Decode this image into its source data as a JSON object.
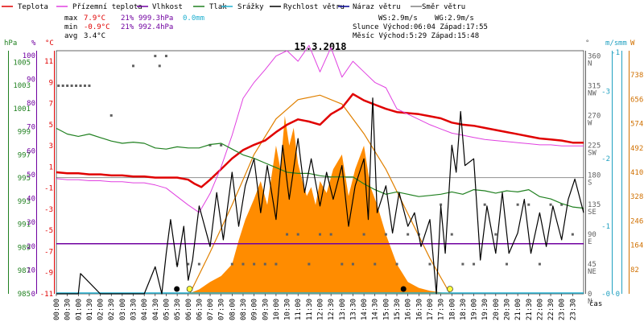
{
  "legend": {
    "items": [
      {
        "label": "Teplota",
        "color": "#e00000"
      },
      {
        "label": "Přízemní teplota",
        "color": "#e040e0"
      },
      {
        "label": "Vlhkost",
        "color": "#7000a0"
      },
      {
        "label": "Tlak",
        "color": "#208020"
      },
      {
        "label": "Srážky",
        "color": "#20b0d0"
      },
      {
        "label": "Rychlost větru",
        "color": "#000000"
      },
      {
        "label": "Náraz větru",
        "color": "#000090"
      },
      {
        "label": "Směr větru",
        "color": "#808080"
      }
    ]
  },
  "stats": {
    "max_label": "max",
    "max_temp": "7.9°C",
    "max_hum": "21%",
    "max_press": "999.3hPa",
    "max_rain": "0.0mm",
    "min_label": "min",
    "min_temp": "-0.9°C",
    "min_hum": "21%",
    "min_press": "992.4hPa",
    "avg_label": "avg",
    "avg_temp": "3.4°C",
    "ws": "WS:2.9m/s",
    "wg": "WG:2.9m/s",
    "sun": "Slunce Východ:06:04  Západ:17:55",
    "moon": "Měsíc  Východ:5:29   Západ:15:48"
  },
  "title": "15.3.2018",
  "axes": {
    "hpa_unit": "hPa",
    "pct_unit": "%",
    "c_unit": "°C",
    "deg_unit": "°",
    "ms_unit": "m/s",
    "mm_unit": "mm",
    "w_unit": "W",
    "x_unit": "čas",
    "hpa_ticks": [
      "985",
      "987",
      "989",
      "991",
      "993",
      "995",
      "997",
      "999",
      "1001",
      "1003",
      "1005"
    ],
    "pct_ticks": [
      "0",
      "10",
      "20",
      "30",
      "40",
      "50",
      "60",
      "70",
      "80",
      "90",
      "100"
    ],
    "temp_ticks": [
      "-11",
      "-9",
      "-7",
      "-5",
      "-3",
      "-1",
      "1",
      "3",
      "5",
      "7",
      "9",
      "11"
    ],
    "deg_ticks": [
      "0 N",
      "45 NE",
      "90 E",
      "135 SE",
      "180 S",
      "225 SW",
      "270 W",
      "315 NW",
      "360 N"
    ],
    "ms_ticks": [
      "-0",
      "-1",
      "-2",
      "-3"
    ],
    "mm_ticks": [
      "-0",
      "-1"
    ],
    "w_ticks": [
      "82",
      "164",
      "246",
      "328",
      "410",
      "492",
      "574",
      "656",
      "738"
    ],
    "x_ticks": [
      "00:00",
      "00:30",
      "01:00",
      "01:30",
      "02:00",
      "02:30",
      "03:00",
      "03:30",
      "04:00",
      "04:30",
      "05:00",
      "05:30",
      "06:00",
      "06:30",
      "07:00",
      "07:30",
      "08:00",
      "08:30",
      "09:00",
      "09:30",
      "10:00",
      "10:30",
      "11:00",
      "11:30",
      "12:00",
      "12:30",
      "13:00",
      "13:30",
      "14:00",
      "14:30",
      "15:00",
      "15:30",
      "16:00",
      "16:30",
      "17:00",
      "17:30",
      "18:00",
      "18:30",
      "19:00",
      "19:30",
      "20:00",
      "20:30",
      "21:00",
      "21:30",
      "22:00",
      "22:30",
      "23:00",
      "23:30"
    ]
  },
  "chart_data": {
    "type": "line",
    "title": "15.3.2018",
    "x_unit": "hours",
    "xlim": [
      0,
      24
    ],
    "series": [
      {
        "name": "Teplota",
        "axis": "temp_c",
        "color": "#e00000",
        "x": [
          0,
          0.5,
          1,
          1.5,
          2,
          2.5,
          3,
          3.5,
          4,
          4.5,
          5,
          5.5,
          6,
          6.3,
          6.6,
          7,
          7.5,
          8,
          8.5,
          9,
          9.5,
          10,
          10.5,
          11,
          11.5,
          12,
          12.5,
          13,
          13.5,
          14,
          14.5,
          15,
          15.5,
          16,
          16.5,
          17,
          17.5,
          18,
          18.5,
          19,
          19.5,
          20,
          20.5,
          21,
          21.5,
          22,
          22.5,
          23,
          23.5,
          24
        ],
        "y": [
          0.5,
          0.4,
          0.4,
          0.3,
          0.3,
          0.2,
          0.2,
          0.1,
          0.1,
          0.0,
          0.0,
          0.0,
          -0.2,
          -0.6,
          -0.9,
          -0.2,
          0.8,
          1.8,
          2.6,
          3.1,
          3.5,
          4.3,
          5.0,
          5.5,
          5.3,
          5.0,
          6.0,
          6.6,
          7.9,
          7.3,
          6.9,
          6.5,
          6.2,
          6.1,
          6.0,
          5.8,
          5.6,
          5.2,
          5.0,
          4.9,
          4.7,
          4.5,
          4.3,
          4.1,
          3.9,
          3.7,
          3.6,
          3.5,
          3.3,
          3.3
        ]
      },
      {
        "name": "Přízemní teplota",
        "axis": "temp_c",
        "color": "#e040e0",
        "x": [
          0,
          0.5,
          1,
          1.5,
          2,
          2.5,
          3,
          3.5,
          4,
          4.5,
          5,
          5.5,
          6,
          6.5,
          7,
          7.5,
          8,
          8.5,
          9,
          9.5,
          10,
          10.5,
          11,
          11.5,
          12,
          12.5,
          13,
          13.5,
          14,
          14.5,
          15,
          15.5,
          16,
          16.5,
          17,
          17.5,
          18,
          18.5,
          19,
          19.5,
          20,
          20.5,
          21,
          21.5,
          22,
          22.5,
          23,
          23.5,
          24
        ],
        "y": [
          -0.1,
          -0.2,
          -0.2,
          -0.3,
          -0.3,
          -0.4,
          -0.4,
          -0.5,
          -0.5,
          -0.7,
          -1.0,
          -1.8,
          -2.6,
          -3.3,
          -1.5,
          1.0,
          4.0,
          7.5,
          9.0,
          10.2,
          11.5,
          12.0,
          11.0,
          12.5,
          10.0,
          12.3,
          9.5,
          11.0,
          10.0,
          9.0,
          8.5,
          6.5,
          6.0,
          5.5,
          5.0,
          4.6,
          4.2,
          4.0,
          3.8,
          3.6,
          3.5,
          3.4,
          3.3,
          3.2,
          3.1,
          3.1,
          3.0,
          3.0,
          3.0
        ]
      },
      {
        "name": "Vlhkost",
        "axis": "percent",
        "color": "#7000a0",
        "x": [
          0,
          24
        ],
        "y": [
          21,
          21
        ]
      },
      {
        "name": "Tlak",
        "axis": "hpa",
        "color": "#208020",
        "x": [
          0,
          0.5,
          1,
          1.5,
          2,
          2.5,
          3,
          3.5,
          4,
          4.5,
          5,
          5.5,
          6,
          6.5,
          7,
          7.5,
          8,
          8.5,
          9,
          9.5,
          10,
          10.5,
          11,
          11.5,
          12,
          12.5,
          13,
          13.5,
          14,
          14.5,
          15,
          15.5,
          16,
          16.5,
          17,
          17.5,
          18,
          18.5,
          19,
          19.5,
          20,
          20.5,
          21,
          21.5,
          22,
          22.5,
          23,
          23.5,
          24
        ],
        "y": [
          999.3,
          998.8,
          998.6,
          998.8,
          998.5,
          998.2,
          998.0,
          998.1,
          998.0,
          997.6,
          997.5,
          997.7,
          997.6,
          997.6,
          997.9,
          998.0,
          997.5,
          997.0,
          996.7,
          996.3,
          995.9,
          995.5,
          995.4,
          995.4,
          995.2,
          995.1,
          995.1,
          995.1,
          994.5,
          994.0,
          993.6,
          993.8,
          993.6,
          993.4,
          993.5,
          993.6,
          993.8,
          993.6,
          994.0,
          993.9,
          993.7,
          993.9,
          993.8,
          994.0,
          993.4,
          993.2,
          992.8,
          992.5,
          992.4
        ]
      },
      {
        "name": "Srážky",
        "axis": "mm",
        "color": "#20b0d0",
        "x": [
          0,
          24
        ],
        "y": [
          0,
          0
        ]
      },
      {
        "name": "Rychlost větru",
        "axis": "ms",
        "color": "#000000",
        "x": [
          0,
          1,
          1.1,
          2,
          3,
          4,
          4.5,
          4.8,
          5.0,
          5.2,
          5.5,
          5.8,
          6.0,
          6.2,
          6.5,
          7,
          7.3,
          7.6,
          8,
          8.3,
          8.6,
          9,
          9.3,
          9.6,
          10,
          10.3,
          10.6,
          11,
          11.3,
          11.6,
          12,
          12.3,
          12.6,
          13,
          13.3,
          13.6,
          14,
          14.2,
          14.4,
          14.6,
          15,
          15.3,
          15.6,
          16,
          16.3,
          16.6,
          17,
          17.3,
          17.5,
          17.7,
          18,
          18.2,
          18.4,
          18.6,
          19,
          19.3,
          19.6,
          20,
          20.3,
          20.6,
          21,
          21.3,
          21.6,
          22,
          22.3,
          22.6,
          23,
          23.3,
          23.6,
          24
        ],
        "y": [
          0,
          0,
          0.3,
          0,
          0,
          0,
          0.4,
          0,
          0.6,
          1.1,
          0.4,
          1.0,
          0.2,
          0.5,
          1.3,
          0.7,
          1.5,
          0.8,
          1.8,
          1.0,
          1.6,
          2.0,
          1.2,
          1.9,
          1.1,
          2.2,
          1.4,
          2.3,
          1.5,
          2.0,
          1.3,
          1.8,
          1.4,
          1.9,
          1.0,
          1.6,
          2.0,
          1.1,
          2.9,
          1.2,
          1.6,
          0.9,
          1.5,
          1.0,
          1.2,
          0.7,
          1.1,
          0,
          1.3,
          0.6,
          2.2,
          1.8,
          2.7,
          1.9,
          2.0,
          0.5,
          1.3,
          0.6,
          1.5,
          0.6,
          0.9,
          1.4,
          0.6,
          1.2,
          0.7,
          1.3,
          0.8,
          1.4,
          1.7,
          1.2
        ]
      }
    ],
    "wind_direction_deg": {
      "x": [
        0.1,
        0.3,
        0.5,
        0.7,
        0.9,
        1.1,
        1.3,
        1.5,
        2.5,
        3.5,
        4.5,
        4.7,
        5.0,
        5.5,
        6.0,
        6.5,
        7.0,
        7.5,
        8.0,
        8.5,
        9.0,
        9.5,
        10.0,
        10.5,
        11.0,
        11.5,
        12.0,
        12.5,
        13.0,
        13.5,
        14.0,
        14.5,
        15.0,
        15.5,
        16.0,
        16.5,
        17.0,
        17.5,
        18.0,
        18.5,
        19.0,
        19.5,
        20.0,
        20.5,
        21.0,
        21.5,
        22.0,
        22.5,
        23.0,
        23.5
      ],
      "y": [
        315,
        315,
        315,
        315,
        315,
        315,
        315,
        315,
        270,
        345,
        360,
        345,
        360,
        45,
        45,
        45,
        225,
        225,
        45,
        45,
        45,
        45,
        45,
        90,
        90,
        45,
        90,
        90,
        45,
        45,
        90,
        45,
        90,
        45,
        90,
        90,
        45,
        135,
        90,
        45,
        45,
        135,
        90,
        45,
        135,
        135,
        45,
        135,
        135,
        90
      ]
    },
    "solar_w": {
      "x": [
        6.0,
        6.5,
        7,
        7.5,
        8,
        8.3,
        8.6,
        9,
        9.3,
        9.6,
        10,
        10.2,
        10.4,
        10.6,
        10.8,
        11,
        11.2,
        11.4,
        11.6,
        11.8,
        12,
        12.3,
        12.6,
        13,
        13.3,
        13.6,
        14,
        14.3,
        14.6,
        15,
        15.5,
        16,
        16.5,
        17,
        17.5,
        18
      ],
      "y": [
        0,
        15,
        40,
        60,
        100,
        180,
        250,
        320,
        380,
        300,
        500,
        420,
        600,
        500,
        560,
        440,
        380,
        330,
        360,
        300,
        380,
        340,
        420,
        470,
        330,
        420,
        500,
        360,
        300,
        200,
        100,
        40,
        20,
        10,
        5,
        0
      ]
    },
    "solar_theoretical_w": {
      "x": [
        6.07,
        7,
        8,
        9,
        10,
        11,
        12,
        13,
        14,
        15,
        16,
        17,
        17.92
      ],
      "y": [
        0,
        140,
        300,
        470,
        590,
        655,
        670,
        640,
        540,
        420,
        270,
        120,
        0
      ]
    },
    "ylim_temp_c": [
      -11,
      12
    ],
    "ylim_hpa": [
      985,
      1006
    ],
    "ylim_percent": [
      0,
      102
    ],
    "ylim_deg": [
      0,
      368
    ],
    "ylim_ms": [
      0,
      3.6
    ],
    "ylim_w": [
      0,
      820
    ]
  }
}
